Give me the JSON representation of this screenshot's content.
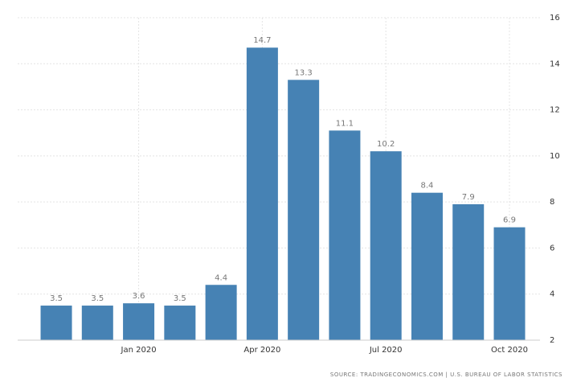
{
  "chart_data": {
    "type": "bar",
    "categories": [
      null,
      null,
      "Jan 2020",
      null,
      null,
      "Apr 2020",
      null,
      null,
      "Jul 2020",
      null,
      null,
      "Oct 2020"
    ],
    "values": [
      3.5,
      3.5,
      3.6,
      3.5,
      4.4,
      14.7,
      13.3,
      11.1,
      10.2,
      8.4,
      7.9,
      6.9
    ],
    "color": "#4682b4",
    "ylim": [
      2,
      16
    ],
    "yticks": [
      2,
      4,
      6,
      8,
      10,
      12,
      14,
      16
    ],
    "grid": true,
    "source": "SOURCE: TRADINGECONOMICS.COM | U.S. BUREAU OF LABOR STATISTICS"
  }
}
